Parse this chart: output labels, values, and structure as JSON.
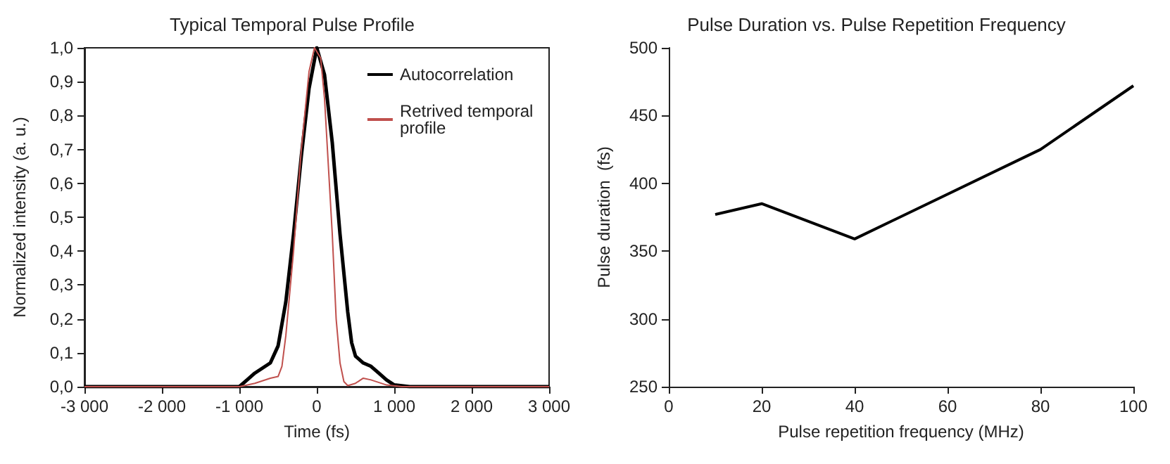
{
  "chart_data": [
    {
      "type": "line",
      "title": "Typical Temporal Pulse Profile",
      "xlabel": "Time (fs)",
      "ylabel": "Normalized intensity (a. u.)",
      "legend": "top right",
      "grid": false,
      "marker": "none",
      "xlim": [
        -3000,
        3000
      ],
      "xticks": [
        {
          "value": -3000,
          "label": "-3 000"
        },
        {
          "value": -2000,
          "label": "-2 000"
        },
        {
          "value": -1000,
          "label": "-1 000"
        },
        0,
        {
          "value": 1000,
          "label": "1 000"
        },
        {
          "value": 2000,
          "label": "2 000"
        },
        {
          "value": 3000,
          "label": "3 000"
        }
      ],
      "ylim": [
        0,
        1
      ],
      "yticks": [
        {
          "value": 0,
          "label": "0,0"
        },
        {
          "value": 0.1,
          "label": "0,1"
        },
        {
          "value": 0.2,
          "label": "0,2"
        },
        {
          "value": 0.3,
          "label": "0,3"
        },
        {
          "value": 0.4,
          "label": "0,4"
        },
        {
          "value": 0.5,
          "label": "0,5"
        },
        {
          "value": 0.6,
          "label": "0,6"
        },
        {
          "value": 0.7,
          "label": "0,7"
        },
        {
          "value": 0.8,
          "label": "0,8"
        },
        {
          "value": 0.9,
          "label": "0,9"
        },
        {
          "value": 1,
          "label": "1,0"
        }
      ],
      "series": [
        {
          "name": "Autocorrelation",
          "color": "#000000",
          "x": [
            -3000,
            -1200,
            -1000,
            -900,
            -800,
            -700,
            -600,
            -500,
            -400,
            -300,
            -200,
            -100,
            0,
            100,
            200,
            300,
            400,
            450,
            500,
            600,
            700,
            800,
            900,
            1000,
            1200,
            3000
          ],
          "values": [
            0,
            0,
            0,
            0.02,
            0.04,
            0.055,
            0.07,
            0.12,
            0.25,
            0.45,
            0.68,
            0.88,
            1,
            0.92,
            0.72,
            0.45,
            0.22,
            0.13,
            0.09,
            0.07,
            0.06,
            0.04,
            0.02,
            0.005,
            0,
            0
          ]
        },
        {
          "name": "Retrived temporal profile",
          "color": "#c0504d",
          "x": [
            -3000,
            -1000,
            -800,
            -600,
            -500,
            -450,
            -400,
            -300,
            -200,
            -100,
            -30,
            50,
            100,
            200,
            250,
            300,
            350,
            400,
            500,
            600,
            700,
            900,
            1100,
            3000
          ],
          "values": [
            0,
            0,
            0.01,
            0.025,
            0.03,
            0.06,
            0.15,
            0.4,
            0.7,
            0.93,
            1,
            0.97,
            0.85,
            0.45,
            0.2,
            0.07,
            0.015,
            0.003,
            0.01,
            0.025,
            0.02,
            0.005,
            0,
            0
          ]
        }
      ]
    },
    {
      "type": "line",
      "title": "Pulse Duration vs. Pulse Repetition Frequency",
      "xlabel": "Pulse repetition frequency (MHz)",
      "ylabel": "Pulse duration  (fs)",
      "grid": false,
      "marker": "none",
      "xlim": [
        0,
        100
      ],
      "xticks": [
        0,
        20,
        40,
        60,
        80,
        100
      ],
      "ylim": [
        250,
        500
      ],
      "yticks": [
        250,
        300,
        350,
        400,
        450,
        500
      ],
      "series": [
        {
          "color": "#000000",
          "x": [
            10,
            20,
            40,
            60,
            80,
            100
          ],
          "values": [
            377,
            385,
            359,
            392,
            425,
            472
          ]
        }
      ]
    }
  ]
}
